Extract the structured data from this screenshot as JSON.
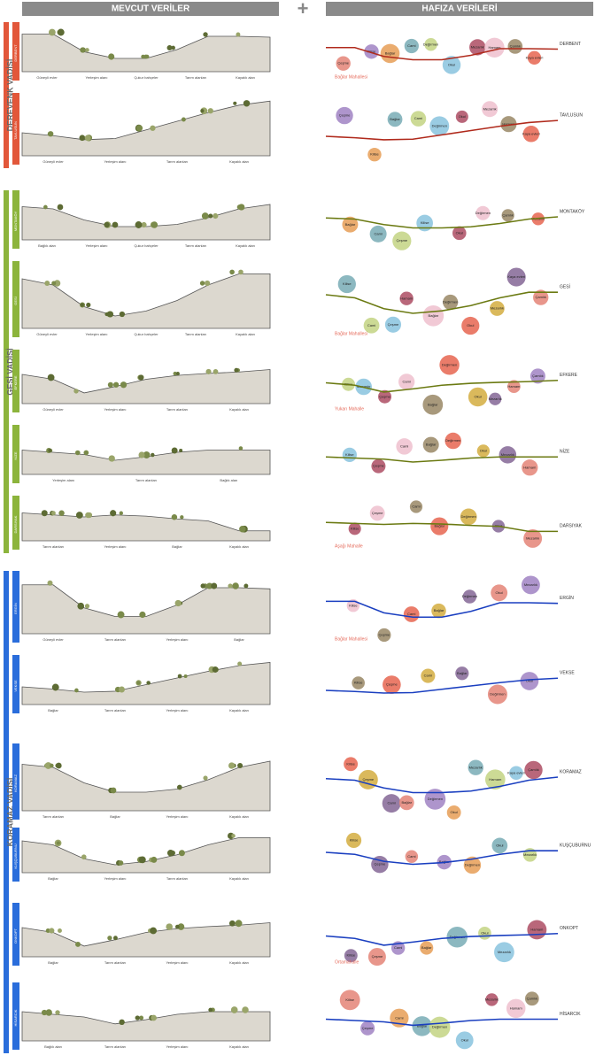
{
  "header": {
    "left": "MEVCUT VERİLER",
    "plus": "+",
    "right": "HAFIZA VERİLERİ"
  },
  "sections": [
    {
      "name": "DEREVENK VADİSİ",
      "rows": [
        {
          "village": "DERBENT",
          "labels": [
            "Güneyli evler",
            "Yerleşim alanı",
            "Çukur bahçeler",
            "Tarım alanları",
            "Kayalık alan"
          ],
          "bubbles": [
            "Çeşme",
            "Kilise",
            "Bağlar",
            "Cami",
            "Değirmen",
            "Okul",
            "Mezarlık",
            "Hamam",
            "Çamlık",
            "Kaya evleri"
          ],
          "note": "Bağlar Mahallesi"
        },
        {
          "village": "TAVLUSUN",
          "labels": [
            "Güneyli evler",
            "Yerleşim alanı",
            "Tarım alanları",
            "Kayalık alan"
          ],
          "bubbles": [
            "Çeşme",
            "Kilise",
            "Bağlar",
            "Cami",
            "Değirmen",
            "Okul",
            "Mezarlık",
            "Hamam",
            "Kaya evleri"
          ]
        }
      ]
    },
    {
      "name": "GESİ VADİSİ",
      "rows": [
        {
          "village": "MONTAKÖY",
          "labels": [
            "Bağlık alan",
            "Yerleşim alanı",
            "Çukur bahçeler",
            "Tarım alanları",
            "Kayalık alan"
          ],
          "bubbles": [
            "Bağlar",
            "Cami",
            "Çeşme",
            "Kilise",
            "Okul",
            "Değirmen",
            "Çamlık",
            "Mezarlık"
          ]
        },
        {
          "village": "GESİ",
          "labels": [
            "Güneyli evler",
            "Yerleşim alanı",
            "Çukur bahçeler",
            "Tarım alanları",
            "Kayalık alan"
          ],
          "bubbles": [
            "Kilise",
            "Cami",
            "Çeşme",
            "Hamam",
            "Bağlar",
            "Değirmen",
            "Okul",
            "Mezarlık",
            "Kaya evleri",
            "Çamlık"
          ],
          "note": "Bağlar Mahallesi"
        },
        {
          "village": "EFKERE",
          "labels": [
            "Güneyli evler",
            "Yerleşim alanı",
            "Tarım alanları",
            "Kayalık alan"
          ],
          "bubbles": [
            "Kilise",
            "Manastır",
            "Çeşme",
            "Cami",
            "Bağlar",
            "Değirmen",
            "Okul",
            "Mezarlık",
            "Hamam",
            "Çamlık"
          ],
          "note": "Yukarı Mahalle"
        },
        {
          "village": "NİZE",
          "labels": [
            "Yerleşim alanı",
            "Tarım alanları",
            "Bağlık alan"
          ],
          "bubbles": [
            "Kilise",
            "Çeşme",
            "Cami",
            "Bağlar",
            "Değirmen",
            "Okul",
            "Mezarlık",
            "Hamam"
          ]
        },
        {
          "village": "DARSIYAK",
          "labels": [
            "Tarım alanları",
            "Yerleşim alanı",
            "Bağlar",
            "Kayalık alan"
          ],
          "bubbles": [
            "Kilise",
            "Çeşme",
            "Cami",
            "Bağlar",
            "Değirmen",
            "Okul",
            "Mezarlık"
          ],
          "note": "Aşağı Mahalle"
        }
      ]
    },
    {
      "name": "KORAMAZ VADİSİ",
      "rows": [
        {
          "village": "ERGİN",
          "labels": [
            "Güneyli evler",
            "Tarım alanları",
            "Yerleşim alanı",
            "Bağlar"
          ],
          "bubbles": [
            "Kilise",
            "Çeşme",
            "Cami",
            "Bağlar",
            "Değirmen",
            "Okul",
            "Mezarlık"
          ],
          "note": "Bağlar Mahallesi"
        },
        {
          "village": "VEKSE",
          "labels": [
            "Bağlar",
            "Tarım alanları",
            "Yerleşim alanı",
            "Kayalık alan"
          ],
          "bubbles": [
            "Kilise",
            "Çeşme",
            "Cami",
            "Bağlar",
            "Değirmen",
            "Okul"
          ]
        },
        {
          "village": "KORAMAZ",
          "labels": [
            "Tarım alanları",
            "Bağlar",
            "Yerleşim alanı",
            "Kayalık alan"
          ],
          "bubbles": [
            "Kilise",
            "Çeşme",
            "Cami",
            "Bağlar",
            "Değirmen",
            "Okul",
            "Mezarlık",
            "Hamam",
            "Kaya evleri",
            "Çamlık"
          ]
        },
        {
          "village": "KUŞÇUBURNU",
          "labels": [
            "Bağlar",
            "Yerleşim alanı",
            "Tarım alanları",
            "Kayalık alan"
          ],
          "bubbles": [
            "Kilise",
            "Çeşme",
            "Cami",
            "Bağlar",
            "Değirmen",
            "Okul",
            "Mezarlık"
          ]
        },
        {
          "village": "ONKOPT",
          "labels": [
            "Bağlar",
            "Tarım alanları",
            "Yerleşim alanı",
            "Kayalık alan"
          ],
          "bubbles": [
            "Kilise",
            "Çeşme",
            "Cami",
            "Bağlar",
            "Değirmen",
            "Okul",
            "Mezarlık",
            "Hamam"
          ],
          "note": "Ortamahalle"
        },
        {
          "village": "HİSARCIK",
          "labels": [
            "Bağlık alan",
            "Tarım alanları",
            "Yerleşim alanı",
            "Kayalık alan"
          ],
          "bubbles": [
            "Kilise",
            "Çeşme",
            "Cami",
            "Bağlar",
            "Değirmen",
            "Okul",
            "Mezarlık",
            "Hamam",
            "Çamlık"
          ]
        }
      ]
    }
  ]
}
